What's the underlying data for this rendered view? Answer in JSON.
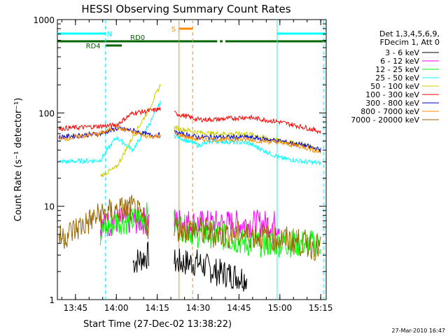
{
  "chart_data": {
    "type": "line",
    "title": "HESSI Observing Summary Count Rates",
    "xlabel": "Start Time (27-Dec-02 13:38:22)",
    "ylabel": "Count Rate (s⁻¹ detector⁻¹)",
    "y_scale": "log",
    "ylim": [
      1,
      1000
    ],
    "xlim_minutes": [
      "13:38:22",
      "15:17"
    ],
    "grid": false,
    "xticks": [
      "13:45",
      "14:00",
      "14:15",
      "14:30",
      "14:45",
      "15:00",
      "15:15"
    ],
    "yticks": [
      "1",
      "10",
      "100",
      "1000"
    ],
    "legend_position": "right",
    "legend_header": [
      "Det 1,3,4,5,6,9,",
      "FDecim 1, Att 0"
    ],
    "timestamp": "27-Mar-2010 16:47",
    "annotations": [
      {
        "label": "N",
        "color": "#00ffff",
        "start": "13:38:22",
        "end": "13:56"
      },
      {
        "label": "N",
        "color": "#00ffff",
        "start": "14:59",
        "end": "15:17"
      },
      {
        "label": "S",
        "color": "#ff8c00",
        "start": "14:23",
        "end": "14:28"
      },
      {
        "label": "RD0",
        "color": "#006400",
        "start": "13:38:22",
        "end": "14:37"
      },
      {
        "label": "RD0",
        "color": "#006400",
        "start": "14:38",
        "end": "14:39"
      },
      {
        "label": "RD0",
        "color": "#006400",
        "start": "14:40",
        "end": "15:17"
      },
      {
        "label": "RD4",
        "color": "#006400",
        "start": "13:56",
        "end": "14:02"
      }
    ],
    "x_hours": [
      13.65,
      13.9,
      14.0,
      14.1,
      14.2,
      14.27,
      14.3,
      14.35,
      14.5,
      14.6,
      14.8,
      15.0,
      15.15,
      15.25
    ],
    "series": [
      {
        "name": "3 - 6 keV",
        "color": "#000000",
        "values": [
          null,
          null,
          null,
          2.5,
          3,
          null,
          null,
          2.5,
          2.5,
          2,
          1.7,
          null,
          null,
          null
        ]
      },
      {
        "name": "6 - 12 keV",
        "color": "#ff00ff",
        "values": [
          null,
          6,
          7,
          7,
          7,
          null,
          null,
          7,
          6.5,
          6.5,
          6.5,
          6.5,
          null,
          null
        ]
      },
      {
        "name": "12 - 25 keV",
        "color": "#00ff00",
        "values": [
          null,
          5,
          7,
          7,
          8,
          null,
          null,
          6.5,
          5,
          5,
          4,
          4,
          4,
          4
        ]
      },
      {
        "name": "25 - 50 keV",
        "color": "#00ffff",
        "values": [
          30,
          31,
          55,
          40,
          75,
          130,
          null,
          58,
          45,
          50,
          48,
          33,
          30,
          29
        ]
      },
      {
        "name": "50 - 100 keV",
        "color": "#cccc00",
        "values": [
          null,
          21,
          26,
          55,
          110,
          200,
          null,
          70,
          62,
          60,
          60,
          50,
          45,
          40
        ]
      },
      {
        "name": "100 - 300 keV",
        "color": "#ff0000",
        "values": [
          68,
          72,
          74,
          100,
          105,
          110,
          null,
          100,
          85,
          85,
          90,
          80,
          70,
          63
        ]
      },
      {
        "name": "300 - 800 keV",
        "color": "#0000cc",
        "values": [
          55,
          60,
          68,
          65,
          58,
          58,
          null,
          62,
          55,
          55,
          55,
          50,
          45,
          40
        ]
      },
      {
        "name": "800 - 7000 keV",
        "color": "#ff8c00",
        "values": [
          52,
          60,
          70,
          62,
          56,
          56,
          null,
          60,
          52,
          52,
          52,
          48,
          43,
          38
        ]
      },
      {
        "name": "7000 - 20000 keV",
        "color": "#996600",
        "values": [
          4.5,
          8,
          9,
          9.5,
          6,
          null,
          null,
          6,
          5.5,
          5,
          5,
          4.5,
          4,
          3.5
        ]
      }
    ]
  }
}
